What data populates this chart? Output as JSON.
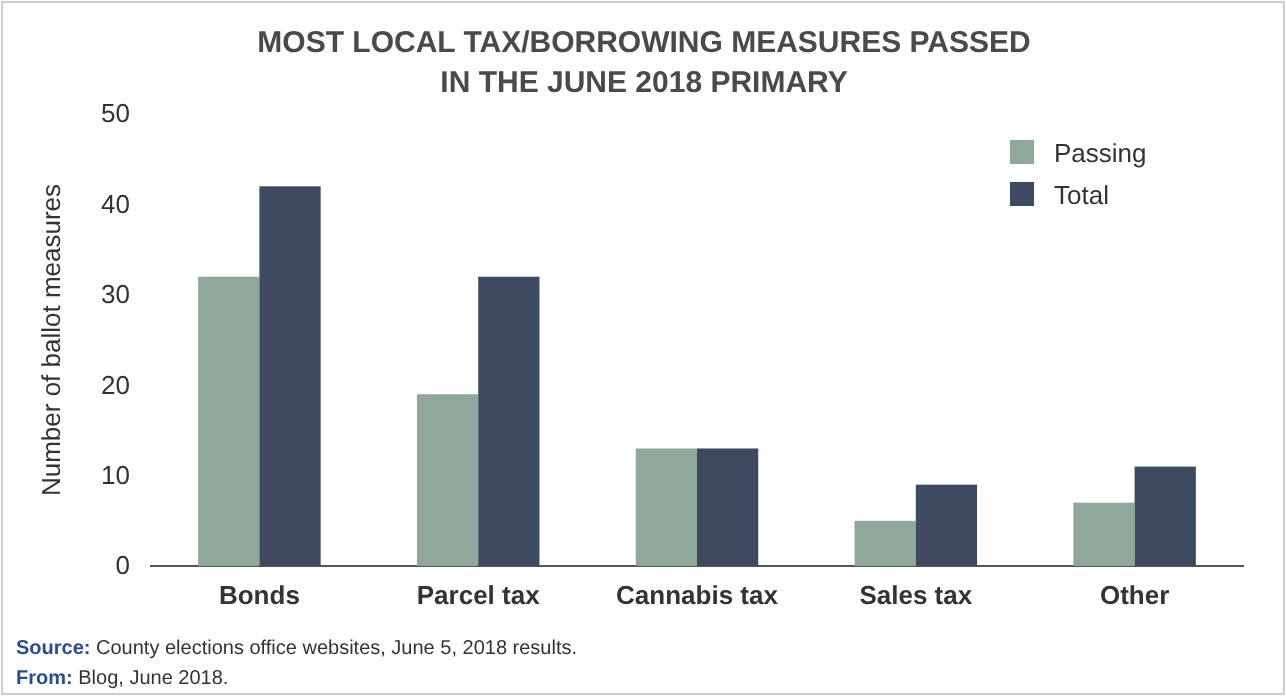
{
  "chart_data": {
    "type": "bar",
    "title": "MOST LOCAL TAX/BORROWING MEASURES PASSED\nIN THE JUNE 2018 PRIMARY",
    "ylabel": "Number of ballot measures",
    "categories": [
      "Bonds",
      "Parcel tax",
      "Cannabis tax",
      "Sales tax",
      "Other"
    ],
    "series": [
      {
        "name": "Passing",
        "color": "#8fa89a",
        "values": [
          32,
          19,
          13,
          5,
          7
        ]
      },
      {
        "name": "Total",
        "color": "#3e4a5d",
        "values": [
          42,
          32,
          13,
          9,
          11
        ]
      }
    ],
    "ylim": [
      0,
      50
    ],
    "yticks": [
      0,
      10,
      20,
      30,
      40,
      50
    ],
    "grid": false,
    "legend": "top right",
    "annotations": [
      "Source: County elections office websites, June 5, 2018 results.",
      "From: Blog, June 2018."
    ]
  }
}
